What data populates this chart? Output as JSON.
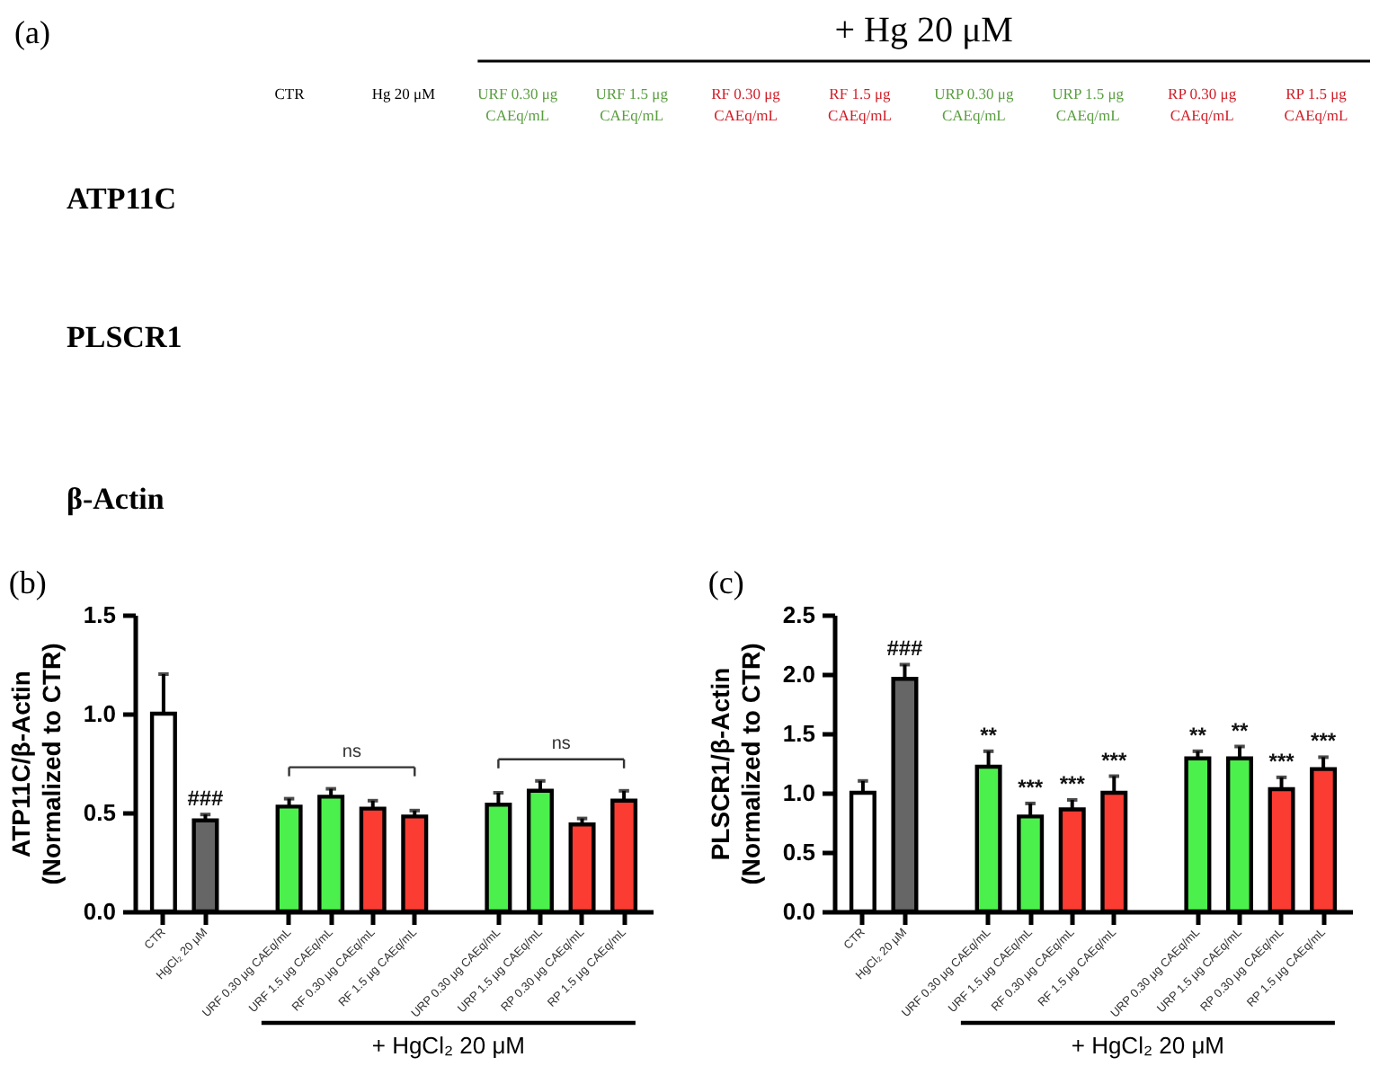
{
  "chart_data": [
    {
      "type": "other",
      "title": "(a)",
      "categories": [
        "CTR",
        "Hg 20 μM",
        "URF 0.30 μg\nCAEq/mL",
        "URF 1.5 μg\nCAEq/mL",
        "RF 0.30 μg\nCAEq/mL",
        "RF 1.5 μg\nCAEq/mL",
        "URP 0.30 μg\nCAEq/mL",
        "URP 1.5 μg\nCAEq/mL",
        "RP 0.30 μg\nCAEq/mL",
        "RP 1.5 μg\nCAEq/mL"
      ],
      "colors": [
        "#000000",
        "#000000",
        "#5a9e40",
        "#5a9e40",
        "#d0202a",
        "#d0202a",
        "#5a9e40",
        "#5a9e40",
        "#d0202a",
        "#d0202a"
      ],
      "y_categories": [
        "ATP11C",
        "PLSCR1",
        "β-Actin"
      ],
      "annotations": [
        "+ Hg 20 μM"
      ]
    },
    {
      "type": "bar",
      "title": "(b)",
      "ylabel": "ATP11C/β-Actin\n(Normalized to CTR)",
      "categories": [
        "CTR",
        "HgCl₂ 20 μM",
        null,
        "URF 0.30 μg CAEq/mL",
        "URF 1.5 μg CAEq/mL",
        "RF 0.30 μg CAEq/mL",
        "RF 1.5 μg CAEq/mL",
        null,
        "URP 0.30 μg CAEq/mL",
        "URP 1.5 μg CAEq/mL",
        "RP 0.30 μg CAEq/mL",
        "RP 1.5 μg CAEq/mL"
      ],
      "values": [
        1.0,
        0.46,
        null,
        0.53,
        0.58,
        0.52,
        0.48,
        null,
        0.54,
        0.61,
        0.44,
        0.56
      ],
      "errors": [
        [
          1.0,
          1.2
        ],
        [
          0.46,
          0.49
        ],
        null,
        [
          0.53,
          0.57
        ],
        [
          0.58,
          0.62
        ],
        [
          0.52,
          0.56
        ],
        [
          0.48,
          0.51
        ],
        null,
        [
          0.54,
          0.6
        ],
        [
          0.61,
          0.66
        ],
        [
          0.44,
          0.47
        ],
        [
          0.56,
          0.61
        ]
      ],
      "colors": [
        "#ffffff",
        "#666666",
        null,
        "#4cf04c",
        "#4cf04c",
        "#fa3c32",
        "#fa3c32",
        null,
        "#4cf04c",
        "#4cf04c",
        "#fa3c32",
        "#fa3c32"
      ],
      "ylim": [
        0,
        1.5
      ],
      "yticks": [
        {
          "value": 0,
          "label": "0.0"
        },
        0.5,
        {
          "value": 1,
          "label": "1.0"
        },
        1.5
      ],
      "annotations": [
        {
          "text": "###",
          "x": "HgCl₂ 20 μM",
          "y": 0.49
        },
        "ns",
        "ns",
        "+ HgCl₂ 20 μM"
      ]
    },
    {
      "type": "bar",
      "title": "(c)",
      "ylabel": "PLSCR1/β-Actin\n(Normalized to CTR)",
      "categories": [
        "CTR",
        "HgCl₂ 20 μM",
        null,
        "URF 0.30 μg CAEq/mL",
        "URF 1.5 μg CAEq/mL",
        "RF 0.30 μg CAEq/mL",
        "RF 1.5 μg CAEq/mL",
        null,
        "URP 0.30 μg CAEq/mL",
        "URP 1.5 μg CAEq/mL",
        "RP 0.30 μg CAEq/mL",
        "RP 1.5 μg CAEq/mL"
      ],
      "values": [
        1.0,
        1.96,
        null,
        1.22,
        0.8,
        0.86,
        1.0,
        null,
        1.29,
        1.29,
        1.03,
        1.2
      ],
      "errors": [
        [
          1.0,
          1.1
        ],
        [
          1.96,
          2.08
        ],
        null,
        [
          1.22,
          1.35
        ],
        [
          0.8,
          0.91
        ],
        [
          0.86,
          0.94
        ],
        [
          1.0,
          1.14
        ],
        null,
        [
          1.29,
          1.35
        ],
        [
          1.29,
          1.39
        ],
        [
          1.03,
          1.13
        ],
        [
          1.2,
          1.3
        ]
      ],
      "colors": [
        "#ffffff",
        "#666666",
        null,
        "#4cf04c",
        "#4cf04c",
        "#fa3c32",
        "#fa3c32",
        null,
        "#4cf04c",
        "#4cf04c",
        "#fa3c32",
        "#fa3c32"
      ],
      "ylim": [
        0,
        2.5
      ],
      "yticks": [
        {
          "value": 0,
          "label": "0.0"
        },
        0.5,
        {
          "value": 1,
          "label": "1.0"
        },
        1.5,
        {
          "value": 2,
          "label": "2.0"
        },
        2.5
      ],
      "annotations": [
        {
          "text": "###",
          "x": "HgCl₂ 20 μM",
          "y": 2.08
        },
        {
          "text": "**",
          "x": "URF 0.30 μg CAEq/mL",
          "y": 1.35
        },
        {
          "text": "***",
          "x": "URF 1.5 μg CAEq/mL",
          "y": 0.91
        },
        {
          "text": "***",
          "x": "RF 0.30 μg CAEq/mL",
          "y": 0.94
        },
        {
          "text": "***",
          "x": "RF 1.5 μg CAEq/mL",
          "y": 1.14
        },
        {
          "text": "**",
          "x": "URP 0.30 μg CAEq/mL",
          "y": 1.35
        },
        {
          "text": "**",
          "x": "URP 1.5 μg CAEq/mL",
          "y": 1.39
        },
        {
          "text": "***",
          "x": "RP 0.30 μg CAEq/mL",
          "y": 1.13
        },
        {
          "text": "***",
          "x": "RP 1.5 μg CAEq/mL",
          "y": 1.3
        },
        "+ HgCl₂ 20 μM"
      ]
    }
  ]
}
